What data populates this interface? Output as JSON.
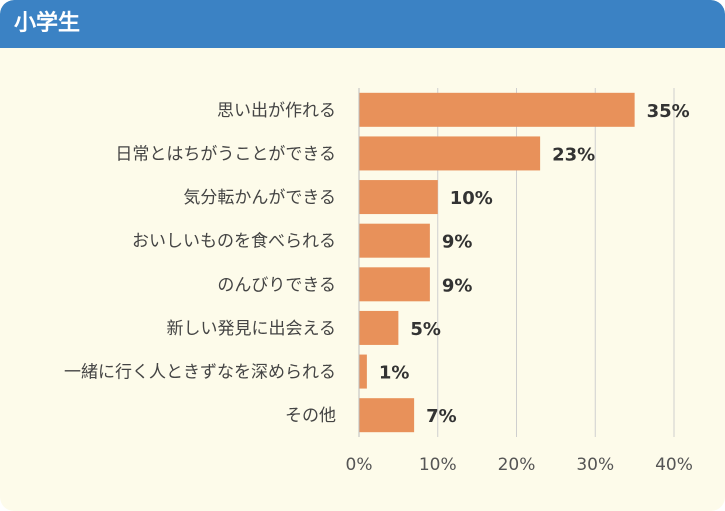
{
  "header": {
    "title": "小学生"
  },
  "chart_data": {
    "type": "bar",
    "orientation": "horizontal",
    "categories": [
      "思い出が作れる",
      "日常とはちがうことができる",
      "気分転かんができる",
      "おいしいものを食べられる",
      "のんびりできる",
      "新しい発見に出会える",
      "一緒に行く人ときずなを深められる",
      "その他"
    ],
    "values": [
      35,
      23,
      10,
      9,
      9,
      5,
      1,
      7
    ],
    "value_labels": [
      "35%",
      "23%",
      "10%",
      "9%",
      "9%",
      "5%",
      "1%",
      "7%"
    ],
    "x_ticks": [
      "0%",
      "10%",
      "20%",
      "30%",
      "40%"
    ],
    "xlim": [
      0,
      40
    ],
    "grid": true,
    "bar_color": "#e8915a"
  }
}
